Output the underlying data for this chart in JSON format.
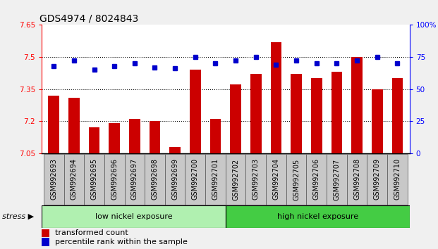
{
  "title": "GDS4974 / 8024843",
  "samples": [
    "GSM992693",
    "GSM992694",
    "GSM992695",
    "GSM992696",
    "GSM992697",
    "GSM992698",
    "GSM992699",
    "GSM992700",
    "GSM992701",
    "GSM992702",
    "GSM992703",
    "GSM992704",
    "GSM992705",
    "GSM992706",
    "GSM992707",
    "GSM992708",
    "GSM992709",
    "GSM992710"
  ],
  "bar_values": [
    7.32,
    7.31,
    7.17,
    7.19,
    7.21,
    7.2,
    7.08,
    7.44,
    7.21,
    7.37,
    7.42,
    7.57,
    7.42,
    7.4,
    7.43,
    7.5,
    7.35,
    7.4
  ],
  "dot_values": [
    68,
    72,
    65,
    68,
    70,
    67,
    66,
    75,
    70,
    72,
    75,
    69,
    72,
    70,
    70,
    72,
    75,
    70
  ],
  "bar_color": "#cc0000",
  "dot_color": "#0000cc",
  "ylim_left": [
    7.05,
    7.65
  ],
  "ylim_right": [
    0,
    100
  ],
  "yticks_left": [
    7.05,
    7.2,
    7.35,
    7.5,
    7.65
  ],
  "ytick_labels_left": [
    "7.05",
    "7.2",
    "7.35",
    "7.5",
    "7.65"
  ],
  "yticks_right": [
    0,
    25,
    50,
    75,
    100
  ],
  "ytick_labels_right": [
    "0",
    "25",
    "50",
    "75",
    "100%"
  ],
  "hlines": [
    7.2,
    7.35,
    7.5
  ],
  "group1_label": "low nickel exposure",
  "group2_label": "high nickel exposure",
  "group1_count": 9,
  "group2_count": 9,
  "stress_label": "stress",
  "legend_bar": "transformed count",
  "legend_dot": "percentile rank within the sample",
  "fig_bg": "#f0f0f0",
  "plot_bg": "#ffffff",
  "xlabel_bg": "#c8c8c8",
  "group1_color": "#b0f0b0",
  "group2_color": "#44cc44",
  "title_fontsize": 10,
  "bar_fontsize": 7,
  "tick_fontsize": 7.5
}
